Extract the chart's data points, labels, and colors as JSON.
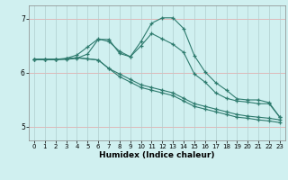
{
  "title": "",
  "xlabel": "Humidex (Indice chaleur)",
  "ylabel": "",
  "background_color": "#d0f0f0",
  "line_color": "#2e7b6e",
  "xlim": [
    -0.5,
    23.5
  ],
  "ylim": [
    4.75,
    7.25
  ],
  "yticks": [
    5,
    6,
    7
  ],
  "xticks": [
    0,
    1,
    2,
    3,
    4,
    5,
    6,
    7,
    8,
    9,
    10,
    11,
    12,
    13,
    14,
    15,
    16,
    17,
    18,
    19,
    20,
    21,
    22,
    23
  ],
  "series": [
    [
      6.25,
      6.25,
      6.25,
      6.25,
      6.27,
      6.35,
      6.62,
      6.62,
      6.36,
      6.3,
      6.58,
      6.92,
      7.02,
      7.02,
      6.82,
      6.32,
      6.02,
      5.82,
      5.68,
      5.52,
      5.5,
      5.5,
      5.45,
      5.18
    ],
    [
      6.25,
      6.25,
      6.25,
      6.27,
      6.33,
      6.48,
      6.63,
      6.58,
      6.4,
      6.3,
      6.5,
      6.73,
      6.63,
      6.53,
      6.38,
      5.98,
      5.83,
      5.63,
      5.53,
      5.48,
      5.46,
      5.43,
      5.43,
      5.18
    ],
    [
      6.25,
      6.25,
      6.25,
      6.26,
      6.28,
      6.26,
      6.24,
      6.08,
      5.98,
      5.88,
      5.78,
      5.73,
      5.68,
      5.63,
      5.53,
      5.43,
      5.38,
      5.33,
      5.28,
      5.23,
      5.2,
      5.18,
      5.16,
      5.13
    ],
    [
      6.25,
      6.25,
      6.25,
      6.26,
      6.28,
      6.26,
      6.24,
      6.08,
      5.93,
      5.83,
      5.73,
      5.68,
      5.63,
      5.58,
      5.48,
      5.38,
      5.33,
      5.28,
      5.23,
      5.18,
      5.16,
      5.13,
      5.11,
      5.08
    ]
  ],
  "hgrid_color": "#e0b0b0",
  "vgrid_color": "#b0cece",
  "marker": "+",
  "markersize": 3.5,
  "linewidth": 0.8
}
